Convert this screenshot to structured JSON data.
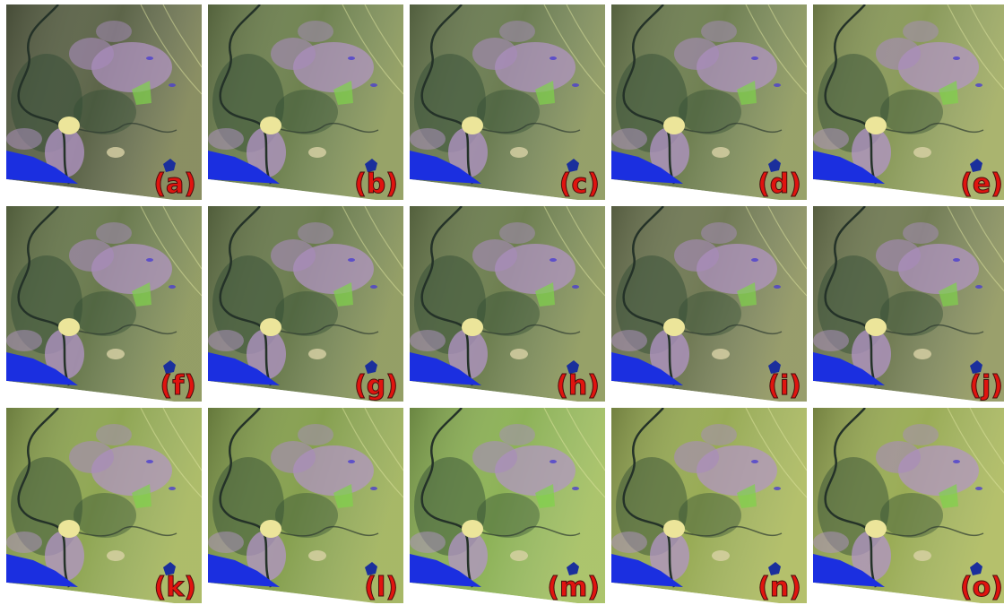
{
  "panels": [
    {
      "label": "(a)"
    },
    {
      "label": "(b)"
    },
    {
      "label": "(c)"
    },
    {
      "label": "(d)"
    },
    {
      "label": "(e)"
    },
    {
      "label": "(f)"
    },
    {
      "label": "(g)"
    },
    {
      "label": "(h)"
    },
    {
      "label": "(i)"
    },
    {
      "label": "(j)"
    },
    {
      "label": "(k)"
    },
    {
      "label": "(l)"
    },
    {
      "label": "(m)"
    },
    {
      "label": "(n)"
    },
    {
      "label": "(o)"
    }
  ]
}
